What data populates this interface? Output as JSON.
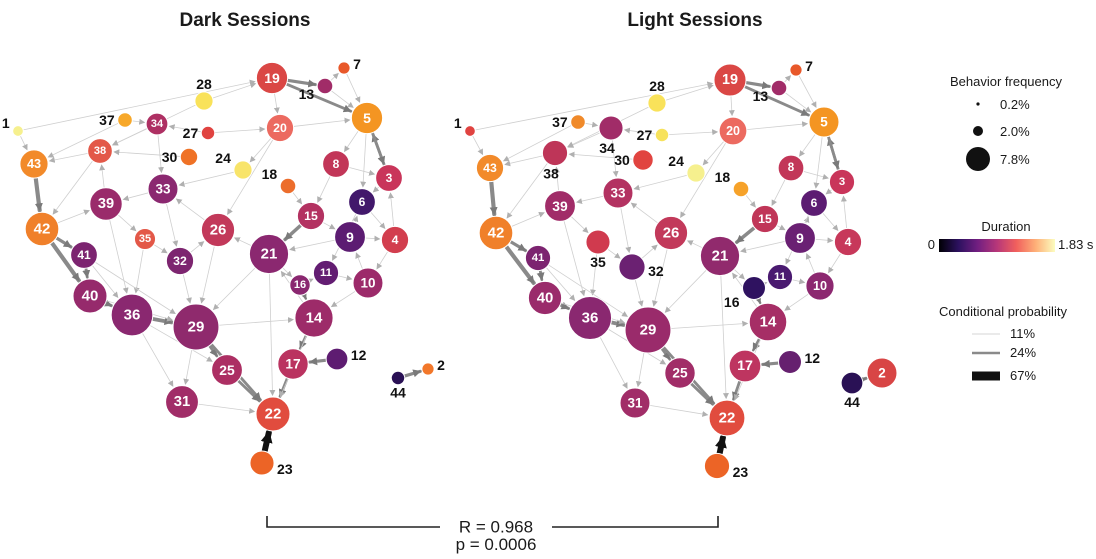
{
  "panels": [
    {
      "title": "Dark Sessions",
      "nodes": [
        {
          "id": "1",
          "color": "#f6f08e",
          "freq": 0.2,
          "ext": true
        },
        {
          "id": "2",
          "color": "#f2772a",
          "freq": 0.3,
          "ext": true
        },
        {
          "id": "3",
          "color": "#c9355a",
          "freq": 2.3
        },
        {
          "id": "4",
          "color": "#d23e4e",
          "freq": 2.4
        },
        {
          "id": "5",
          "color": "#f49522",
          "freq": 3.3
        },
        {
          "id": "6",
          "color": "#42186b",
          "freq": 2.3
        },
        {
          "id": "7",
          "color": "#e8582a",
          "freq": 0.3,
          "ext": true
        },
        {
          "id": "8",
          "color": "#c23658",
          "freq": 2.3
        },
        {
          "id": "9",
          "color": "#5c1c72",
          "freq": 3.2
        },
        {
          "id": "10",
          "color": "#9c2a6a",
          "freq": 3.0
        },
        {
          "id": "11",
          "color": "#631d72",
          "freq": 2.0
        },
        {
          "id": "12",
          "color": "#5e1c71",
          "freq": 1.4,
          "ext": true
        },
        {
          "id": "13",
          "color": "#a12c68",
          "freq": 0.6,
          "ext": true
        },
        {
          "id": "14",
          "color": "#9d2b69",
          "freq": 5.2
        },
        {
          "id": "15",
          "color": "#b33261",
          "freq": 2.4
        },
        {
          "id": "16",
          "color": "#8a2770",
          "freq": 1.2
        },
        {
          "id": "17",
          "color": "#ba3360",
          "freq": 3.1
        },
        {
          "id": "18",
          "color": "#ec6d2c",
          "freq": 0.6,
          "ext": true
        },
        {
          "id": "19",
          "color": "#da4745",
          "freq": 3.3
        },
        {
          "id": "20",
          "color": "#ec6a60",
          "freq": 2.4
        },
        {
          "id": "21",
          "color": "#8b2870",
          "freq": 5.5
        },
        {
          "id": "22",
          "color": "#e14c3e",
          "freq": 4.0
        },
        {
          "id": "23",
          "color": "#ec6426",
          "freq": 1.8,
          "ext": true
        },
        {
          "id": "24",
          "color": "#f8e46a",
          "freq": 0.9,
          "ext": true
        },
        {
          "id": "25",
          "color": "#ac2f63",
          "freq": 3.2
        },
        {
          "id": "26",
          "color": "#c2395a",
          "freq": 3.8
        },
        {
          "id": "27",
          "color": "#e04340",
          "freq": 0.4,
          "ext": true
        },
        {
          "id": "28",
          "color": "#f9e25a",
          "freq": 0.9,
          "ext": true
        },
        {
          "id": "29",
          "color": "#8f2a6d",
          "freq": 7.8
        },
        {
          "id": "30",
          "color": "#ef7226",
          "freq": 0.8,
          "ext": true
        },
        {
          "id": "31",
          "color": "#a12d68",
          "freq": 3.7
        },
        {
          "id": "32",
          "color": "#7d2570",
          "freq": 2.4
        },
        {
          "id": "33",
          "color": "#8b2870",
          "freq": 3.0
        },
        {
          "id": "34",
          "color": "#ae3063",
          "freq": 1.4
        },
        {
          "id": "35",
          "color": "#e35848",
          "freq": 1.3
        },
        {
          "id": "36",
          "color": "#8a2870",
          "freq": 6.3
        },
        {
          "id": "37",
          "color": "#f7a82a",
          "freq": 0.5,
          "ext": true
        },
        {
          "id": "38",
          "color": "#e35848",
          "freq": 1.9
        },
        {
          "id": "39",
          "color": "#9a2b6b",
          "freq": 3.6
        },
        {
          "id": "40",
          "color": "#962a6c",
          "freq": 4.0
        },
        {
          "id": "41",
          "color": "#7c2470",
          "freq": 2.3
        },
        {
          "id": "42",
          "color": "#f0802a",
          "freq": 3.9
        },
        {
          "id": "43",
          "color": "#f28a2a",
          "freq": 2.6
        },
        {
          "id": "44",
          "color": "#2a1155",
          "freq": 0.4,
          "ext": true
        }
      ]
    },
    {
      "title": "Light Sessions",
      "nodes": [
        {
          "id": "1",
          "color": "#e04340",
          "freq": 0.2,
          "ext": true
        },
        {
          "id": "2",
          "color": "#d84545",
          "freq": 3.0
        },
        {
          "id": "3",
          "color": "#c9355a",
          "freq": 2.0
        },
        {
          "id": "4",
          "color": "#c7385a",
          "freq": 2.4
        },
        {
          "id": "5",
          "color": "#f49522",
          "freq": 3.0
        },
        {
          "id": "6",
          "color": "#5c1c72",
          "freq": 2.3
        },
        {
          "id": "7",
          "color": "#e8582a",
          "freq": 0.3,
          "ext": true
        },
        {
          "id": "8",
          "color": "#c23658",
          "freq": 2.1
        },
        {
          "id": "9",
          "color": "#6a2073",
          "freq": 3.2
        },
        {
          "id": "10",
          "color": "#8c2870",
          "freq": 2.6
        },
        {
          "id": "11",
          "color": "#4a1a70",
          "freq": 2.0
        },
        {
          "id": "12",
          "color": "#66206f",
          "freq": 1.6,
          "ext": true
        },
        {
          "id": "13",
          "color": "#a12c68",
          "freq": 0.6,
          "ext": true
        },
        {
          "id": "14",
          "color": "#a62e66",
          "freq": 5.0
        },
        {
          "id": "15",
          "color": "#c03658",
          "freq": 2.4
        },
        {
          "id": "16",
          "color": "#2f1260",
          "freq": 1.6,
          "ext": true
        },
        {
          "id": "17",
          "color": "#be3560",
          "freq": 3.4
        },
        {
          "id": "18",
          "color": "#f6a22a",
          "freq": 0.6,
          "ext": true
        },
        {
          "id": "19",
          "color": "#da4745",
          "freq": 3.5
        },
        {
          "id": "20",
          "color": "#ec6a60",
          "freq": 2.5
        },
        {
          "id": "21",
          "color": "#912a6d",
          "freq": 5.5
        },
        {
          "id": "22",
          "color": "#e14c3e",
          "freq": 4.5
        },
        {
          "id": "23",
          "color": "#ec6426",
          "freq": 2.0,
          "ext": true
        },
        {
          "id": "24",
          "color": "#f6f08e",
          "freq": 0.9,
          "ext": true
        },
        {
          "id": "25",
          "color": "#a12d68",
          "freq": 3.1
        },
        {
          "id": "26",
          "color": "#c2395a",
          "freq": 3.8
        },
        {
          "id": "27",
          "color": "#f7e25c",
          "freq": 0.4,
          "ext": true
        },
        {
          "id": "28",
          "color": "#f9e25a",
          "freq": 0.9,
          "ext": true
        },
        {
          "id": "29",
          "color": "#9a2b6b",
          "freq": 7.8
        },
        {
          "id": "30",
          "color": "#e14440",
          "freq": 1.2,
          "ext": true
        },
        {
          "id": "31",
          "color": "#a12d68",
          "freq": 3.0
        },
        {
          "id": "32",
          "color": "#6b2172",
          "freq": 2.2,
          "ext": true
        },
        {
          "id": "33",
          "color": "#b33261",
          "freq": 3.0
        },
        {
          "id": "34",
          "color": "#a12c68",
          "freq": 1.8,
          "ext": true
        },
        {
          "id": "35",
          "color": "#d03a4e",
          "freq": 1.8,
          "ext": true
        },
        {
          "id": "36",
          "color": "#8a2870",
          "freq": 6.8
        },
        {
          "id": "37",
          "color": "#f08a2a",
          "freq": 0.5,
          "ext": true
        },
        {
          "id": "38",
          "color": "#be3558",
          "freq": 2.0,
          "ext": true
        },
        {
          "id": "39",
          "color": "#a12c68",
          "freq": 3.2
        },
        {
          "id": "40",
          "color": "#9a2b6b",
          "freq": 3.8
        },
        {
          "id": "41",
          "color": "#7c2470",
          "freq": 2.0
        },
        {
          "id": "42",
          "color": "#f0802a",
          "freq": 3.9
        },
        {
          "id": "43",
          "color": "#f28a2a",
          "freq": 2.4
        },
        {
          "id": "44",
          "color": "#2a1155",
          "freq": 1.4,
          "ext": true
        }
      ]
    }
  ],
  "edges": [
    [
      "1",
      "43",
      17
    ],
    [
      "43",
      "42",
      30
    ],
    [
      "42",
      "41",
      24
    ],
    [
      "42",
      "40",
      30
    ],
    [
      "41",
      "40",
      22
    ],
    [
      "40",
      "36",
      24
    ],
    [
      "36",
      "29",
      28
    ],
    [
      "29",
      "25",
      22
    ],
    [
      "25",
      "22",
      22
    ],
    [
      "31",
      "22",
      18
    ],
    [
      "29",
      "22",
      22
    ],
    [
      "17",
      "22",
      22
    ],
    [
      "14",
      "17",
      20
    ],
    [
      "12",
      "17",
      24
    ],
    [
      "14",
      "21",
      18
    ],
    [
      "16",
      "14",
      20
    ],
    [
      "21",
      "16",
      16
    ],
    [
      "11",
      "10",
      14
    ],
    [
      "10",
      "9",
      14
    ],
    [
      "9",
      "6",
      16
    ],
    [
      "4",
      "3",
      14
    ],
    [
      "3",
      "5",
      22
    ],
    [
      "5",
      "3",
      22
    ],
    [
      "5",
      "8",
      16
    ],
    [
      "8",
      "15",
      12
    ],
    [
      "15",
      "21",
      26
    ],
    [
      "21",
      "26",
      12
    ],
    [
      "26",
      "33",
      12
    ],
    [
      "33",
      "39",
      12
    ],
    [
      "39",
      "38",
      12
    ],
    [
      "38",
      "43",
      16
    ],
    [
      "34",
      "38",
      12
    ],
    [
      "37",
      "34",
      12
    ],
    [
      "28",
      "19",
      14
    ],
    [
      "19",
      "5",
      22
    ],
    [
      "19",
      "13",
      24
    ],
    [
      "7",
      "5",
      16
    ],
    [
      "13",
      "7",
      14
    ],
    [
      "19",
      "20",
      12
    ],
    [
      "20",
      "26",
      12
    ],
    [
      "20",
      "24",
      12
    ],
    [
      "30",
      "38",
      12
    ],
    [
      "27",
      "34",
      12
    ],
    [
      "18",
      "15",
      18
    ],
    [
      "23",
      "22",
      67
    ],
    [
      "44",
      "2",
      24
    ],
    [
      "36",
      "31",
      14
    ],
    [
      "40",
      "29",
      14
    ],
    [
      "29",
      "14",
      16
    ],
    [
      "21",
      "29",
      16
    ],
    [
      "6",
      "4",
      14
    ],
    [
      "9",
      "4",
      14
    ],
    [
      "10",
      "14",
      16
    ],
    [
      "39",
      "36",
      14
    ],
    [
      "41",
      "36",
      14
    ],
    [
      "35",
      "32",
      12
    ],
    [
      "33",
      "32",
      12
    ],
    [
      "32",
      "26",
      12
    ],
    [
      "39",
      "35",
      12
    ],
    [
      "36",
      "25",
      14
    ],
    [
      "29",
      "31",
      14
    ],
    [
      "1",
      "19",
      11
    ],
    [
      "28",
      "38",
      11
    ],
    [
      "38",
      "42",
      14
    ],
    [
      "34",
      "33",
      12
    ],
    [
      "9",
      "21",
      14
    ],
    [
      "8",
      "3",
      14
    ],
    [
      "15",
      "9",
      12
    ],
    [
      "6",
      "11",
      12
    ],
    [
      "4",
      "10",
      12
    ],
    [
      "26",
      "29",
      14
    ],
    [
      "21",
      "22",
      12
    ],
    [
      "14",
      "22",
      12
    ],
    [
      "42",
      "39",
      12
    ],
    [
      "37",
      "43",
      11
    ],
    [
      "3",
      "6",
      14
    ],
    [
      "5",
      "6",
      14
    ],
    [
      "13",
      "5",
      18
    ],
    [
      "20",
      "5",
      12
    ],
    [
      "24",
      "33",
      11
    ],
    [
      "27",
      "20",
      11
    ],
    [
      "32",
      "29",
      14
    ],
    [
      "35",
      "36",
      12
    ],
    [
      "41",
      "29",
      12
    ],
    [
      "16",
      "11",
      12
    ]
  ],
  "legend": {
    "size": {
      "title": "Behavior frequency",
      "items": [
        {
          "label": "0.2%",
          "freq": 0.2
        },
        {
          "label": "2.0%",
          "freq": 2.0
        },
        {
          "label": "7.8%",
          "freq": 7.8
        }
      ]
    },
    "duration": {
      "title": "Duration",
      "min": "0",
      "max": "1.83 s",
      "colors": [
        "#000004",
        "#2c115f",
        "#721f81",
        "#b73779",
        "#f1605d",
        "#feb078",
        "#fcfdbf"
      ]
    },
    "prob": {
      "title": "Conditional probability",
      "items": [
        {
          "label": "11%",
          "p": 11
        },
        {
          "label": "24%",
          "p": 24
        },
        {
          "label": "67%",
          "p": 67
        }
      ]
    }
  },
  "stats": {
    "r": "R = 0.968",
    "p": "p = 0.0006"
  }
}
